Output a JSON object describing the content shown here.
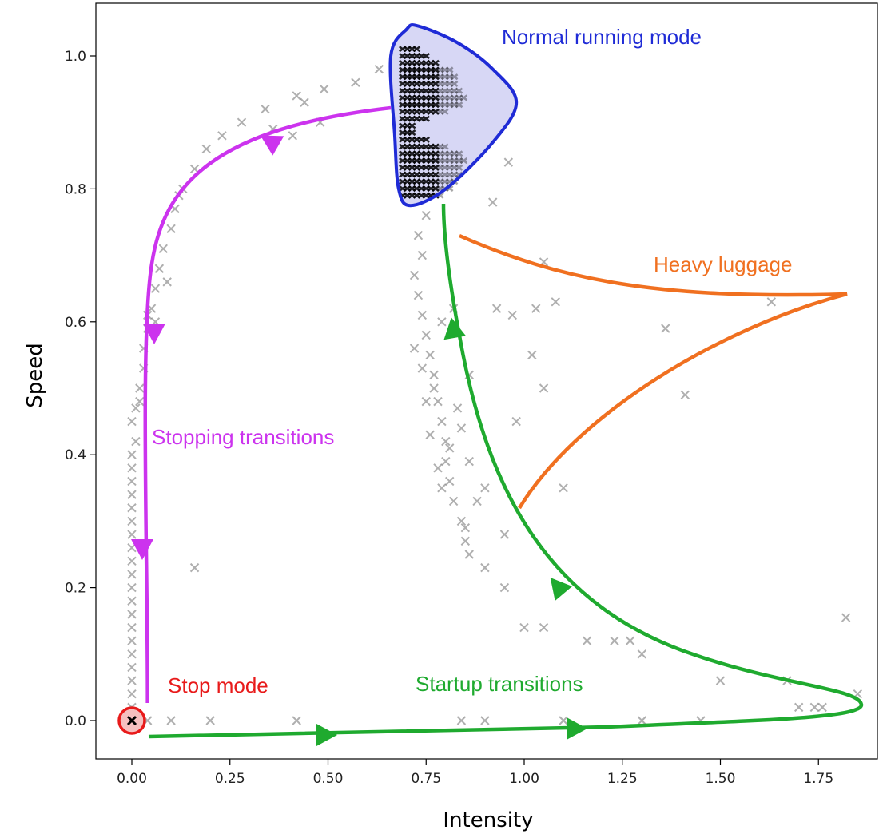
{
  "chart_data": {
    "type": "scatter",
    "title": "",
    "xlabel": "Intensity",
    "ylabel": "Speed",
    "xlim": [
      -0.1,
      1.92
    ],
    "ylim": [
      -0.09,
      1.07
    ],
    "x_ticks": [
      0.0,
      0.25,
      0.5,
      0.75,
      1.0,
      1.25,
      1.5,
      1.75
    ],
    "x_tick_labels": [
      "0.00",
      "0.25",
      "0.50",
      "0.75",
      "1.00",
      "1.25",
      "1.50",
      "1.75"
    ],
    "y_ticks": [
      0.0,
      0.2,
      0.4,
      0.6,
      0.8,
      1.0
    ],
    "y_tick_labels": [
      "0.0",
      "0.2",
      "0.4",
      "0.6",
      "0.8",
      "1.0"
    ],
    "grid": false,
    "legend": "none",
    "series": [
      {
        "marker": "x",
        "color": "#000000",
        "points": [
          [
            0.0,
            0.0
          ],
          [
            0.0,
            0.02
          ],
          [
            0.0,
            0.04
          ],
          [
            0.0,
            0.06
          ],
          [
            0.0,
            0.08
          ],
          [
            0.0,
            0.1
          ],
          [
            0.0,
            0.12
          ],
          [
            0.0,
            0.14
          ],
          [
            0.0,
            0.16
          ],
          [
            0.0,
            0.18
          ],
          [
            0.0,
            0.2
          ],
          [
            0.0,
            0.22
          ],
          [
            0.0,
            0.24
          ],
          [
            0.0,
            0.26
          ],
          [
            0.0,
            0.28
          ],
          [
            0.0,
            0.3
          ],
          [
            0.0,
            0.32
          ],
          [
            0.0,
            0.34
          ],
          [
            0.0,
            0.36
          ],
          [
            0.0,
            0.38
          ],
          [
            0.0,
            0.4
          ],
          [
            0.01,
            0.42
          ],
          [
            0.0,
            0.45
          ],
          [
            0.01,
            0.47
          ],
          [
            0.02,
            0.5
          ],
          [
            0.03,
            0.53
          ],
          [
            0.03,
            0.56
          ],
          [
            0.04,
            0.59
          ],
          [
            0.05,
            0.62
          ],
          [
            0.06,
            0.65
          ],
          [
            0.07,
            0.68
          ],
          [
            0.08,
            0.71
          ],
          [
            0.1,
            0.74
          ],
          [
            0.11,
            0.77
          ],
          [
            0.13,
            0.8
          ],
          [
            0.16,
            0.83
          ],
          [
            0.19,
            0.86
          ],
          [
            0.23,
            0.88
          ],
          [
            0.28,
            0.9
          ],
          [
            0.34,
            0.92
          ],
          [
            0.42,
            0.94
          ],
          [
            0.49,
            0.95
          ],
          [
            0.57,
            0.96
          ],
          [
            0.63,
            0.98
          ],
          [
            0.36,
            0.89
          ],
          [
            0.41,
            0.88
          ],
          [
            0.44,
            0.93
          ],
          [
            0.48,
            0.9
          ],
          [
            0.06,
            0.6
          ],
          [
            0.02,
            0.48
          ],
          [
            0.16,
            0.23
          ],
          [
            0.09,
            0.66
          ],
          [
            0.04,
            0.61
          ],
          [
            0.12,
            0.79
          ],
          [
            0.04,
            0.0
          ],
          [
            0.1,
            0.0
          ],
          [
            0.2,
            0.0
          ],
          [
            0.42,
            0.0
          ],
          [
            0.84,
            0.0
          ],
          [
            0.9,
            0.0
          ],
          [
            1.1,
            0.0
          ],
          [
            1.3,
            0.0
          ],
          [
            1.45,
            0.0
          ],
          [
            1.7,
            0.02
          ],
          [
            1.74,
            0.02
          ],
          [
            1.76,
            0.02
          ],
          [
            1.67,
            0.06
          ],
          [
            1.85,
            0.04
          ],
          [
            1.82,
            0.155
          ],
          [
            1.5,
            0.06
          ],
          [
            1.23,
            0.12
          ],
          [
            1.27,
            0.12
          ],
          [
            1.3,
            0.1
          ],
          [
            1.16,
            0.12
          ],
          [
            1.05,
            0.14
          ],
          [
            1.0,
            0.14
          ],
          [
            0.95,
            0.2
          ],
          [
            0.9,
            0.23
          ],
          [
            0.95,
            0.28
          ],
          [
            0.9,
            0.35
          ],
          [
            0.98,
            0.45
          ],
          [
            1.05,
            0.5
          ],
          [
            1.1,
            0.35
          ],
          [
            1.02,
            0.55
          ],
          [
            1.03,
            0.62
          ],
          [
            1.08,
            0.63
          ],
          [
            0.97,
            0.61
          ],
          [
            1.36,
            0.59
          ],
          [
            1.41,
            0.49
          ],
          [
            1.63,
            0.63
          ],
          [
            0.82,
            0.62
          ],
          [
            0.77,
            0.5
          ],
          [
            0.84,
            0.44
          ],
          [
            0.86,
            0.39
          ],
          [
            0.88,
            0.33
          ],
          [
            0.86,
            0.25
          ],
          [
            0.85,
            0.29
          ],
          [
            0.93,
            0.62
          ],
          [
            0.92,
            0.78
          ],
          [
            0.96,
            0.84
          ],
          [
            1.05,
            0.69
          ],
          [
            0.79,
            0.6
          ],
          [
            0.75,
            0.76
          ],
          [
            0.73,
            0.73
          ],
          [
            0.74,
            0.7
          ],
          [
            0.72,
            0.67
          ],
          [
            0.73,
            0.64
          ],
          [
            0.74,
            0.61
          ],
          [
            0.75,
            0.58
          ],
          [
            0.76,
            0.55
          ],
          [
            0.77,
            0.52
          ],
          [
            0.78,
            0.48
          ],
          [
            0.79,
            0.45
          ],
          [
            0.8,
            0.42
          ],
          [
            0.8,
            0.39
          ],
          [
            0.81,
            0.36
          ],
          [
            0.82,
            0.33
          ],
          [
            0.84,
            0.3
          ],
          [
            0.85,
            0.27
          ],
          [
            0.75,
            0.48
          ],
          [
            0.76,
            0.43
          ],
          [
            0.78,
            0.38
          ],
          [
            0.79,
            0.35
          ],
          [
            0.81,
            0.41
          ],
          [
            0.83,
            0.47
          ],
          [
            0.86,
            0.52
          ],
          [
            0.72,
            0.56
          ],
          [
            0.74,
            0.53
          ]
        ]
      }
    ],
    "normal_mode_band": {
      "x_range": [
        0.69,
        0.87
      ],
      "y_range": [
        0.79,
        1.02
      ]
    },
    "annotations": [
      {
        "text": "Normal running mode",
        "color": "#1f2bd6"
      },
      {
        "text": "Heavy luggage",
        "color": "#f07020"
      },
      {
        "text": "Stopping transitions",
        "color": "#cc33ee"
      },
      {
        "text": "Stop mode",
        "color": "#e81a1a"
      },
      {
        "text": "Startup transitions",
        "color": "#1faa2f"
      }
    ],
    "colors": {
      "normal_mode": "#1f2bd6",
      "normal_mode_fill": "#c9c9f2",
      "heavy_luggage": "#f07020",
      "stopping": "#cc33ee",
      "stop": "#e81a1a",
      "startup": "#1faa2f",
      "markers": "#7a7a7a"
    }
  }
}
